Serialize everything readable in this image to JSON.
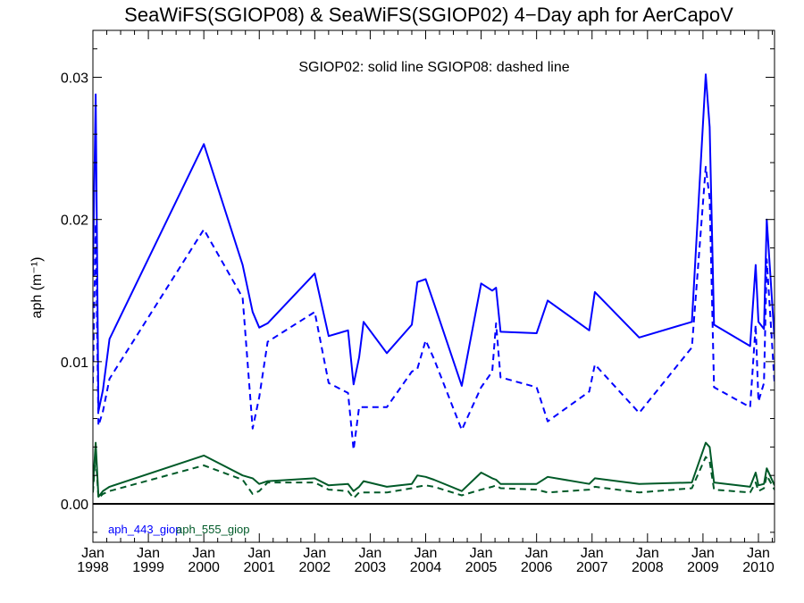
{
  "chart_data": {
    "type": "line",
    "title": "SeaWiFS(SGIOP08) & SeaWiFS(SGIOP02) 4−Day aph for AerCapoV",
    "annotation": "SGIOP02: solid line   SGIOP08: dashed line",
    "ylabel": "aph (m⁻¹)",
    "xlabel": "",
    "ylim": [
      -0.0027,
      0.0333
    ],
    "xlim": [
      1998.0,
      2010.29
    ],
    "y_ticks": [
      0.0,
      0.01,
      0.02,
      0.03
    ],
    "y_tick_labels": [
      "0.00",
      "0.01",
      "0.02",
      "0.03"
    ],
    "x_ticks": [
      1998,
      1999,
      2000,
      2001,
      2002,
      2003,
      2004,
      2005,
      2006,
      2007,
      2008,
      2009,
      2010
    ],
    "x_tick_labels": [
      {
        "month": "Jan",
        "year": "1998"
      },
      {
        "month": "Jan",
        "year": "1999"
      },
      {
        "month": "Jan",
        "year": "2000"
      },
      {
        "month": "Jan",
        "year": "2001"
      },
      {
        "month": "Jan",
        "year": "2002"
      },
      {
        "month": "Jan",
        "year": "2003"
      },
      {
        "month": "Jan",
        "year": "2004"
      },
      {
        "month": "Jan",
        "year": "2005"
      },
      {
        "month": "Jan",
        "year": "2006"
      },
      {
        "month": "Jan",
        "year": "2007"
      },
      {
        "month": "Jan",
        "year": "2008"
      },
      {
        "month": "Jan",
        "year": "2009"
      },
      {
        "month": "Jan",
        "year": "2010"
      }
    ],
    "zero_line": 0.0,
    "legend": [
      {
        "label": "aph_443_giop",
        "color": "#0000ff"
      },
      {
        "label": "aph_555_giop",
        "color": "#005a28"
      }
    ],
    "series": [
      {
        "name": "aph_443_giop",
        "color": "#0000ff",
        "dash": false,
        "x": [
          1998.0,
          1998.05,
          1998.1,
          1998.18,
          1998.3,
          2000.0,
          2000.7,
          2000.88,
          2001.0,
          2001.15,
          2002.0,
          2002.25,
          2002.6,
          2002.7,
          2002.8,
          2002.88,
          2003.3,
          2003.75,
          2003.85,
          2004.0,
          2004.15,
          2004.65,
          2005.0,
          2005.2,
          2005.27,
          2005.35,
          2006.0,
          2006.2,
          2006.95,
          2007.05,
          2007.85,
          2008.8,
          2009.05,
          2009.12,
          2009.2,
          2009.85,
          2009.95,
          2010.0,
          2010.1,
          2010.15,
          2010.29
        ],
        "y": [
          0.016,
          0.0288,
          0.0065,
          0.008,
          0.0116,
          0.0253,
          0.0168,
          0.0135,
          0.0124,
          0.0127,
          0.0162,
          0.0118,
          0.0122,
          0.0084,
          0.0103,
          0.0128,
          0.0106,
          0.0126,
          0.0156,
          0.0158,
          0.0141,
          0.0083,
          0.0155,
          0.015,
          0.0152,
          0.0121,
          0.012,
          0.0143,
          0.0122,
          0.0149,
          0.0117,
          0.0128,
          0.0302,
          0.0265,
          0.0126,
          0.0111,
          0.0168,
          0.0128,
          0.0123,
          0.02,
          0.0116
        ]
      },
      {
        "name": "aph_443_giop",
        "color": "#0000ff",
        "dash": true,
        "x": [
          1998.0,
          1998.05,
          1998.1,
          1998.18,
          1998.3,
          2000.0,
          2000.7,
          2000.88,
          2001.0,
          2001.15,
          2002.0,
          2002.25,
          2002.6,
          2002.7,
          2002.8,
          2002.88,
          2003.3,
          2003.75,
          2003.85,
          2004.0,
          2004.15,
          2004.65,
          2005.0,
          2005.2,
          2005.27,
          2005.35,
          2006.0,
          2006.2,
          2006.95,
          2007.05,
          2007.85,
          2008.8,
          2009.05,
          2009.12,
          2009.2,
          2009.85,
          2009.95,
          2010.0,
          2010.1,
          2010.15,
          2010.29
        ],
        "y": [
          0.0085,
          0.0197,
          0.0055,
          0.0065,
          0.0088,
          0.0193,
          0.0145,
          0.0053,
          0.0075,
          0.0114,
          0.0135,
          0.0085,
          0.0078,
          0.0038,
          0.0068,
          0.0068,
          0.0068,
          0.0093,
          0.0095,
          0.0115,
          0.0102,
          0.0052,
          0.0082,
          0.0093,
          0.0127,
          0.0089,
          0.0082,
          0.0058,
          0.0079,
          0.0098,
          0.0064,
          0.011,
          0.0237,
          0.0215,
          0.0082,
          0.0068,
          0.0126,
          0.0072,
          0.0085,
          0.0172,
          0.0085
        ]
      },
      {
        "name": "aph_555_giop",
        "color": "#005a28",
        "dash": false,
        "x": [
          1998.0,
          1998.05,
          1998.1,
          1998.18,
          1998.3,
          2000.0,
          2000.7,
          2000.88,
          2001.0,
          2001.15,
          2002.0,
          2002.25,
          2002.6,
          2002.7,
          2002.8,
          2002.88,
          2003.3,
          2003.75,
          2003.85,
          2004.0,
          2004.15,
          2004.65,
          2005.0,
          2005.2,
          2005.27,
          2005.35,
          2006.0,
          2006.2,
          2006.95,
          2007.05,
          2007.85,
          2008.8,
          2009.05,
          2009.12,
          2009.2,
          2009.85,
          2009.95,
          2010.0,
          2010.1,
          2010.15,
          2010.29
        ],
        "y": [
          0.0012,
          0.0043,
          0.0005,
          0.0009,
          0.0012,
          0.0034,
          0.002,
          0.0018,
          0.0014,
          0.0016,
          0.0018,
          0.0013,
          0.0014,
          0.0009,
          0.0012,
          0.0016,
          0.0012,
          0.0014,
          0.002,
          0.0019,
          0.0017,
          0.0009,
          0.0022,
          0.0018,
          0.0017,
          0.0014,
          0.0014,
          0.0019,
          0.0014,
          0.0018,
          0.0014,
          0.0015,
          0.0043,
          0.004,
          0.0015,
          0.0012,
          0.0022,
          0.0013,
          0.0014,
          0.0025,
          0.0013
        ]
      },
      {
        "name": "aph_555_giop",
        "color": "#005a28",
        "dash": true,
        "x": [
          1998.0,
          1998.05,
          1998.1,
          1998.18,
          1998.3,
          2000.0,
          2000.7,
          2000.88,
          2001.0,
          2001.15,
          2002.0,
          2002.25,
          2002.6,
          2002.7,
          2002.8,
          2002.88,
          2003.3,
          2003.75,
          2003.85,
          2004.0,
          2004.15,
          2004.65,
          2005.0,
          2005.2,
          2005.27,
          2005.35,
          2006.0,
          2006.2,
          2006.95,
          2007.05,
          2007.85,
          2008.8,
          2009.05,
          2009.12,
          2009.2,
          2009.85,
          2009.95,
          2010.0,
          2010.1,
          2010.15,
          2010.29
        ],
        "y": [
          0.0008,
          0.0035,
          0.0004,
          0.0007,
          0.0009,
          0.0027,
          0.0017,
          0.0007,
          0.0009,
          0.0015,
          0.0015,
          0.001,
          0.0009,
          0.0004,
          0.0008,
          0.0008,
          0.0008,
          0.0011,
          0.0012,
          0.0013,
          0.0012,
          0.0006,
          0.001,
          0.0012,
          0.0013,
          0.0011,
          0.001,
          0.0008,
          0.001,
          0.0012,
          0.0008,
          0.0011,
          0.0033,
          0.003,
          0.001,
          0.0008,
          0.0015,
          0.0009,
          0.0011,
          0.002,
          0.001
        ]
      }
    ]
  }
}
